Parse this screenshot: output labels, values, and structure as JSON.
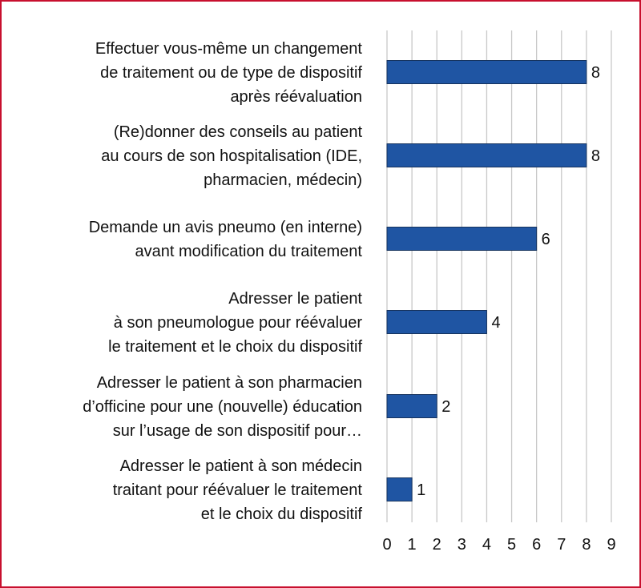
{
  "colors": {
    "bar": "#1f55a3",
    "frame": "#c8102e",
    "grid": "#c8c8c8"
  },
  "chart_data": {
    "type": "bar",
    "orientation": "horizontal",
    "categories": [
      [
        "Effectuer vous-même un changement",
        "de traitement ou de type de dispositif",
        "après réévaluation"
      ],
      [
        "(Re)donner des conseils au patient",
        "au cours de son hospitalisation (IDE,",
        "pharmacien, médecin)"
      ],
      [
        "Demande un avis pneumo (en interne)",
        "avant modification du traitement"
      ],
      [
        "Adresser le patient",
        "à son pneumologue pour réévaluer",
        "le traitement et le choix du dispositif"
      ],
      [
        "Adresser le patient à son pharmacien",
        "d’officine pour une (nouvelle) éducation",
        "sur l’usage de son dispositif pour…"
      ],
      [
        "Adresser le patient à son médecin",
        "traitant pour réévaluer le traitement",
        "et le choix du dispositif"
      ]
    ],
    "values": [
      8,
      8,
      6,
      4,
      2,
      1
    ],
    "value_labels": [
      "8",
      "8",
      "6",
      "4",
      "2",
      "1"
    ],
    "xlim": [
      0,
      9
    ],
    "xticks": [
      "0",
      "1",
      "2",
      "3",
      "4",
      "5",
      "6",
      "7",
      "8",
      "9"
    ],
    "grid": true,
    "title": "",
    "xlabel": "",
    "ylabel": ""
  }
}
